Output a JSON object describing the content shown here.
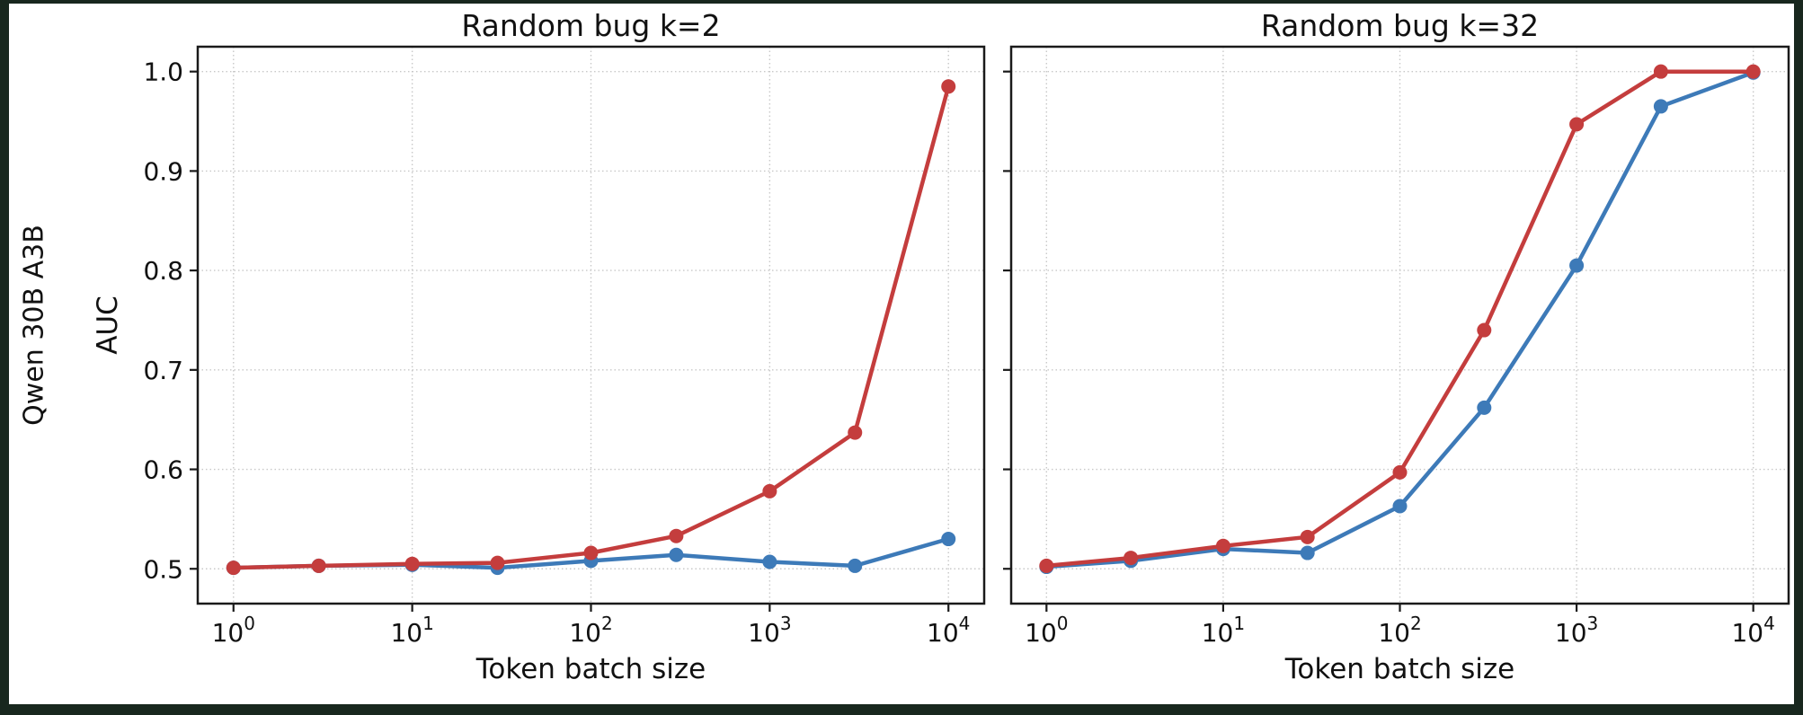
{
  "row_label": "Qwen 30B A3B",
  "frame": {
    "border_color": "#18271e",
    "background": "#ffffff"
  },
  "colors": {
    "red_series": "#c43d3d",
    "blue_series": "#3d7ab8",
    "grid": "#c8c8c8",
    "spine": "#1a1a1a"
  },
  "chart_data": [
    {
      "type": "line",
      "title": "Random bug k=2",
      "xlabel": "Token batch size",
      "ylabel": "AUC",
      "x_scale": "log",
      "grid": true,
      "legend": "none",
      "x": [
        1,
        3,
        10,
        30,
        100,
        300,
        1000,
        3000,
        10000
      ],
      "x_log_domain": [
        -0.2,
        4.2
      ],
      "ylim": [
        0.465,
        1.025
      ],
      "xticks": [
        {
          "value": 1,
          "base": "10",
          "exp": "0"
        },
        {
          "value": 10,
          "base": "10",
          "exp": "1"
        },
        {
          "value": 100,
          "base": "10",
          "exp": "2"
        },
        {
          "value": 1000,
          "base": "10",
          "exp": "3"
        },
        {
          "value": 10000,
          "base": "10",
          "exp": "4"
        }
      ],
      "yticks": [
        {
          "value": 0.5,
          "label": "0.5"
        },
        {
          "value": 0.6,
          "label": "0.6"
        },
        {
          "value": 0.7,
          "label": "0.7"
        },
        {
          "value": 0.8,
          "label": "0.8"
        },
        {
          "value": 0.9,
          "label": "0.9"
        },
        {
          "value": 1.0,
          "label": "1.0"
        }
      ],
      "series": [
        {
          "name": "blue-series",
          "color": "#3d7ab8",
          "values": [
            0.501,
            0.503,
            0.504,
            0.501,
            0.508,
            0.514,
            0.507,
            0.503,
            0.53
          ]
        },
        {
          "name": "red-series",
          "color": "#c43d3d",
          "values": [
            0.501,
            0.503,
            0.505,
            0.506,
            0.516,
            0.533,
            0.578,
            0.637,
            0.985
          ]
        }
      ]
    },
    {
      "type": "line",
      "title": "Random bug k=32",
      "xlabel": "Token batch size",
      "ylabel": "",
      "x_scale": "log",
      "grid": true,
      "legend": "none",
      "x": [
        1,
        3,
        10,
        30,
        100,
        300,
        1000,
        3000,
        10000
      ],
      "x_log_domain": [
        -0.2,
        4.2
      ],
      "ylim": [
        0.465,
        1.025
      ],
      "xticks": [
        {
          "value": 1,
          "base": "10",
          "exp": "0"
        },
        {
          "value": 10,
          "base": "10",
          "exp": "1"
        },
        {
          "value": 100,
          "base": "10",
          "exp": "2"
        },
        {
          "value": 1000,
          "base": "10",
          "exp": "3"
        },
        {
          "value": 10000,
          "base": "10",
          "exp": "4"
        }
      ],
      "yticks": [
        {
          "value": 0.5,
          "label": "0.5"
        },
        {
          "value": 0.6,
          "label": "0.6"
        },
        {
          "value": 0.7,
          "label": "0.7"
        },
        {
          "value": 0.8,
          "label": "0.8"
        },
        {
          "value": 0.9,
          "label": "0.9"
        },
        {
          "value": 1.0,
          "label": "1.0"
        }
      ],
      "series": [
        {
          "name": "blue-series",
          "color": "#3d7ab8",
          "values": [
            0.502,
            0.508,
            0.52,
            0.516,
            0.563,
            0.662,
            0.805,
            0.965,
            0.999
          ]
        },
        {
          "name": "red-series",
          "color": "#c43d3d",
          "values": [
            0.503,
            0.511,
            0.523,
            0.532,
            0.597,
            0.74,
            0.947,
            1.0,
            1.0
          ]
        }
      ]
    }
  ]
}
